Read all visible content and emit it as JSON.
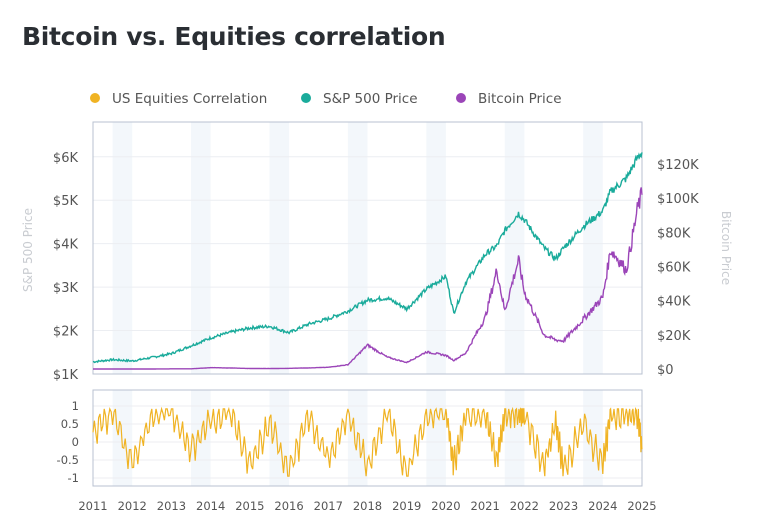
{
  "title": "Bitcoin vs. Equities correlation",
  "legend": [
    {
      "label": "US Equities Correlation",
      "color": "#f0b323"
    },
    {
      "label": "S&P 500 Price",
      "color": "#1aab9b"
    },
    {
      "label": "Bitcoin Price",
      "color": "#9b45b8"
    }
  ],
  "chart_data": [
    {
      "type": "line",
      "title": "Bitcoin vs. Equities correlation",
      "x": [
        2011,
        2011.5,
        2012,
        2012.5,
        2013,
        2013.5,
        2014,
        2014.5,
        2015,
        2015.5,
        2016,
        2016.5,
        2017,
        2017.5,
        2018,
        2018.5,
        2019,
        2019.5,
        2020,
        2020.2,
        2020.5,
        2021,
        2021.3,
        2021.5,
        2021.85,
        2022,
        2022.5,
        2022.8,
        2023,
        2023.5,
        2024,
        2024.2,
        2024.6,
        2024.9,
        2025
      ],
      "series": [
        {
          "name": "S&P 500 Price",
          "axis": "left",
          "color": "#1aab9b",
          "values": [
            1280,
            1330,
            1300,
            1380,
            1470,
            1650,
            1830,
            1960,
            2060,
            2100,
            1950,
            2150,
            2270,
            2450,
            2700,
            2750,
            2500,
            2950,
            3250,
            2400,
            3100,
            3750,
            3950,
            4300,
            4700,
            4550,
            3900,
            3650,
            3900,
            4400,
            4750,
            5200,
            5500,
            6000,
            6100
          ]
        },
        {
          "name": "Bitcoin Price",
          "axis": "right",
          "color": "#9b45b8",
          "values": [
            0,
            0,
            5,
            10,
            100,
            100,
            800,
            600,
            300,
            250,
            400,
            650,
            1000,
            2500,
            14000,
            7000,
            3800,
            10000,
            8000,
            5000,
            9200,
            30000,
            58000,
            34000,
            64000,
            45000,
            20000,
            17000,
            16500,
            29000,
            42000,
            70000,
            58000,
            95000,
            102000
          ]
        },
        {
          "name": "US Equities Correlation",
          "axis": "corr",
          "color": "#f0b323",
          "values": [
            0.3,
            0.8,
            -0.6,
            0.7,
            0.85,
            -0.2,
            0.6,
            0.9,
            -0.7,
            0.5,
            -0.8,
            0.7,
            -0.5,
            0.8,
            -0.7,
            0.8,
            -0.85,
            0.7,
            0.85,
            -0.6,
            0.8,
            0.7,
            -0.5,
            0.8,
            0.85,
            0.8,
            -0.7,
            0.6,
            -0.8,
            0.5,
            -0.6,
            0.8,
            0.7,
            0.75,
            -0.2
          ]
        }
      ],
      "xlabel": "",
      "x_ticks": [
        "2011",
        "2012",
        "2013",
        "2014",
        "2015",
        "2016",
        "2017",
        "2018",
        "2019",
        "2020",
        "2021",
        "2022",
        "2023",
        "2024",
        "2025"
      ],
      "xlim": [
        2011,
        2025
      ],
      "left_axis": {
        "label": "S&P 500 Price",
        "ticks": [
          "$1K",
          "$2K",
          "$3K",
          "$4K",
          "$5K",
          "$6K"
        ],
        "ylim": [
          1000,
          6800
        ]
      },
      "right_axis": {
        "label": "Bitcoin Price",
        "ticks": [
          "$0",
          "$20K",
          "$40K",
          "$60K",
          "$80K",
          "$100K",
          "$120K"
        ],
        "ylim": [
          0,
          105000
        ]
      },
      "corr_axis": {
        "ticks": [
          "1",
          "0.5",
          "0",
          "-0.5",
          "-1"
        ],
        "ylim": [
          -1.05,
          1.3
        ]
      },
      "grid": true,
      "legend_position": "top"
    }
  ]
}
